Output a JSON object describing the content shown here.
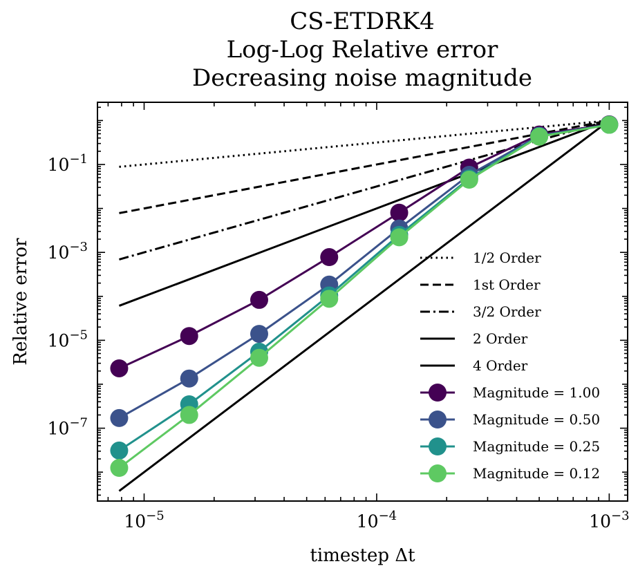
{
  "chart_data": {
    "type": "line",
    "title": [
      "CS-ETDRK4",
      "Log-Log Relative error",
      "Decreasing noise magnitude"
    ],
    "xlabel": "timestep Δt",
    "ylabel": "Relative error",
    "xscale": "log",
    "yscale": "log",
    "xlim": [
      6.3e-06,
      0.0012
    ],
    "ylim": [
      2.2e-09,
      2.6
    ],
    "grid": false,
    "legend_position": "lower-right",
    "x_ticks": [
      {
        "value": 1e-05,
        "label": "10",
        "exp": "−5"
      },
      {
        "value": 0.0001,
        "label": "10",
        "exp": "−4"
      },
      {
        "value": 0.001,
        "label": "10",
        "exp": "−3"
      }
    ],
    "y_ticks": [
      {
        "value": 1e-07,
        "label": "10",
        "exp": "−7"
      },
      {
        "value": 1e-05,
        "label": "10",
        "exp": "−5"
      },
      {
        "value": 0.001,
        "label": "10",
        "exp": "−3"
      },
      {
        "value": 0.1,
        "label": "10",
        "exp": "−1"
      }
    ],
    "x": [
      7.8125e-06,
      1.5625e-05,
      3.125e-05,
      6.25e-05,
      0.000125,
      0.00025,
      0.0005,
      0.001
    ],
    "reference_lines": [
      {
        "name": "1/2 Order",
        "style": "dotted",
        "color": "#000000",
        "x": [
          7.8125e-06,
          0.001
        ],
        "y": [
          0.08839,
          1.0
        ]
      },
      {
        "name": "1st Order",
        "style": "dashed",
        "color": "#000000",
        "x": [
          7.8125e-06,
          0.001
        ],
        "y": [
          0.0078125,
          1.0
        ]
      },
      {
        "name": "3/2 Order",
        "style": "dashdot",
        "color": "#000000",
        "x": [
          7.8125e-06,
          0.001
        ],
        "y": [
          0.00069053,
          1.0
        ]
      },
      {
        "name": "2 Order",
        "style": "solid",
        "color": "#000000",
        "x": [
          7.8125e-06,
          0.001
        ],
        "y": [
          6.1035e-05,
          1.0
        ]
      },
      {
        "name": "4 Order",
        "style": "solid",
        "color": "#000000",
        "x": [
          7.8125e-06,
          0.001
        ],
        "y": [
          3.7253e-09,
          1.0
        ]
      }
    ],
    "series": [
      {
        "name": "Magnitude = 1.00",
        "color": "#440154",
        "y": [
          2.3e-06,
          1.25e-05,
          8.3e-05,
          0.00078,
          0.008,
          0.085,
          0.48,
          0.82
        ]
      },
      {
        "name": "Magnitude = 0.50",
        "color": "#3b528b",
        "y": [
          1.7e-07,
          1.35e-06,
          1.4e-05,
          0.000185,
          0.0035,
          0.058,
          0.45,
          0.81
        ]
      },
      {
        "name": "Magnitude = 0.25",
        "color": "#21918c",
        "y": [
          3.1e-08,
          3.5e-07,
          5.5e-06,
          0.000105,
          0.0025,
          0.048,
          0.44,
          0.8
        ]
      },
      {
        "name": "Magnitude = 0.12",
        "color": "#5ec962",
        "y": [
          1.25e-08,
          2e-07,
          4e-06,
          8.8e-05,
          0.0022,
          0.045,
          0.43,
          0.8
        ]
      }
    ]
  }
}
